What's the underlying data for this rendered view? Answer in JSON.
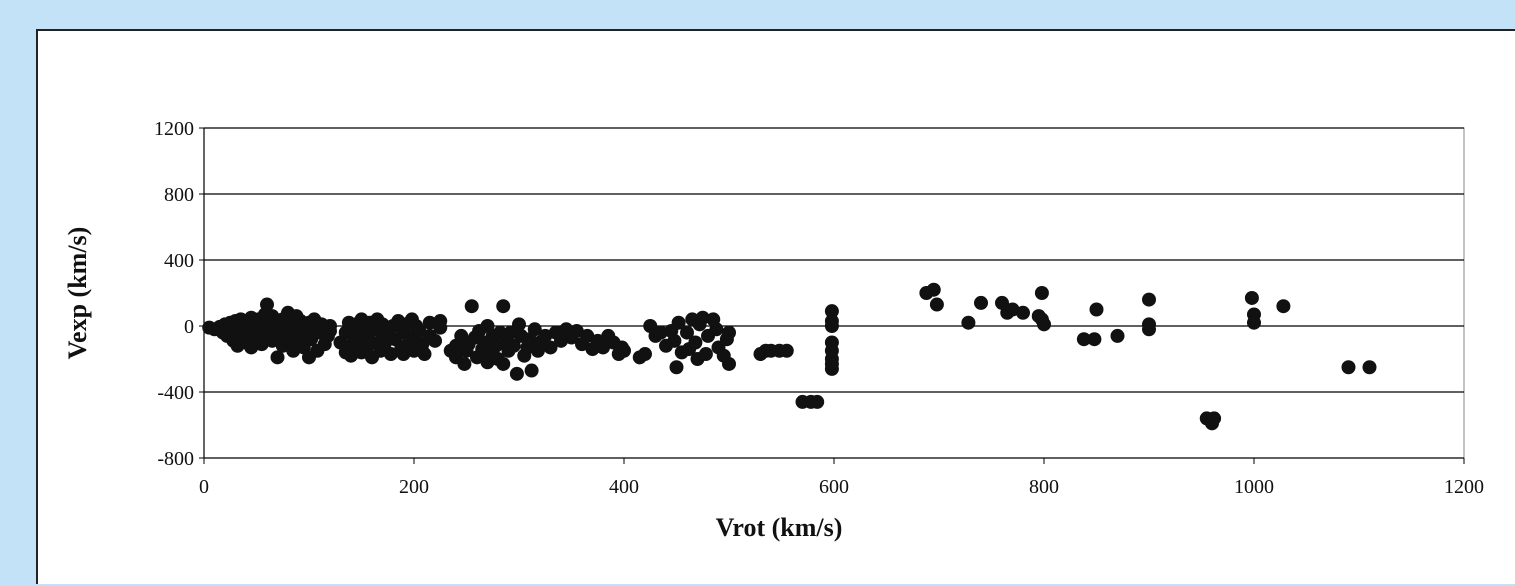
{
  "chart_data": {
    "type": "scatter",
    "title": "",
    "xlabel": "Vrot (km/s)",
    "ylabel": "Vexp (km/s)",
    "xlim": [
      0,
      1200
    ],
    "ylim": [
      -800,
      1200
    ],
    "xticks": [
      0,
      200,
      400,
      600,
      800,
      1000,
      1200
    ],
    "yticks": [
      -800,
      -400,
      0,
      400,
      800,
      1200
    ],
    "xtick_labels": [
      "0",
      "200",
      "400",
      "600",
      "800",
      "1000",
      "1200"
    ],
    "ytick_labels": [
      "-800",
      "-400",
      "0",
      "400",
      "800",
      "1200"
    ],
    "grid": "horizontal",
    "legend": "none",
    "colors": {
      "marker": "#111111",
      "grid": "#000000",
      "background": "#c3e2f7",
      "plot_bg": "#ffffff"
    },
    "series": [
      {
        "points": [
          [
            5,
            -10
          ],
          [
            10,
            -20
          ],
          [
            15,
            -5
          ],
          [
            18,
            -40
          ],
          [
            20,
            10
          ],
          [
            22,
            -60
          ],
          [
            25,
            -30
          ],
          [
            25,
            20
          ],
          [
            28,
            -90
          ],
          [
            30,
            -50
          ],
          [
            30,
            30
          ],
          [
            32,
            -120
          ],
          [
            35,
            -10
          ],
          [
            35,
            40
          ],
          [
            38,
            -70
          ],
          [
            40,
            -100
          ],
          [
            40,
            20
          ],
          [
            42,
            -30
          ],
          [
            45,
            50
          ],
          [
            45,
            -130
          ],
          [
            48,
            -60
          ],
          [
            50,
            0
          ],
          [
            50,
            -80
          ],
          [
            52,
            40
          ],
          [
            55,
            -20
          ],
          [
            55,
            -110
          ],
          [
            58,
            70
          ],
          [
            60,
            130
          ],
          [
            60,
            -50
          ],
          [
            62,
            20
          ],
          [
            65,
            -90
          ],
          [
            65,
            60
          ],
          [
            68,
            -30
          ],
          [
            70,
            -190
          ],
          [
            70,
            10
          ],
          [
            72,
            -60
          ],
          [
            75,
            40
          ],
          [
            75,
            -120
          ],
          [
            78,
            -10
          ],
          [
            80,
            -80
          ],
          [
            80,
            80
          ],
          [
            82,
            20
          ],
          [
            85,
            -150
          ],
          [
            85,
            -40
          ],
          [
            88,
            60
          ],
          [
            90,
            -100
          ],
          [
            90,
            0
          ],
          [
            92,
            30
          ],
          [
            95,
            -60
          ],
          [
            95,
            -130
          ],
          [
            98,
            -20
          ],
          [
            100,
            -190
          ],
          [
            100,
            20
          ],
          [
            102,
            -80
          ],
          [
            105,
            40
          ],
          [
            105,
            -10
          ],
          [
            108,
            -150
          ],
          [
            110,
            -40
          ],
          [
            112,
            10
          ],
          [
            115,
            -110
          ],
          [
            118,
            -60
          ],
          [
            120,
            0
          ],
          [
            120,
            -30
          ],
          [
            130,
            -100
          ],
          [
            135,
            -160
          ],
          [
            135,
            -40
          ],
          [
            138,
            20
          ],
          [
            140,
            -180
          ],
          [
            140,
            -120
          ],
          [
            142,
            -60
          ],
          [
            145,
            10
          ],
          [
            148,
            -90
          ],
          [
            150,
            40
          ],
          [
            150,
            -160
          ],
          [
            152,
            -30
          ],
          [
            155,
            -130
          ],
          [
            155,
            -70
          ],
          [
            158,
            20
          ],
          [
            160,
            -190
          ],
          [
            160,
            -100
          ],
          [
            162,
            -20
          ],
          [
            165,
            40
          ],
          [
            168,
            -150
          ],
          [
            170,
            -60
          ],
          [
            170,
            10
          ],
          [
            172,
            -110
          ],
          [
            175,
            -30
          ],
          [
            178,
            -170
          ],
          [
            180,
            0
          ],
          [
            182,
            -80
          ],
          [
            185,
            30
          ],
          [
            188,
            -130
          ],
          [
            190,
            -40
          ],
          [
            190,
            -170
          ],
          [
            192,
            10
          ],
          [
            195,
            -100
          ],
          [
            198,
            40
          ],
          [
            200,
            -150
          ],
          [
            200,
            -60
          ],
          [
            202,
            0
          ],
          [
            205,
            -30
          ],
          [
            208,
            -110
          ],
          [
            210,
            -170
          ],
          [
            215,
            -60
          ],
          [
            215,
            20
          ],
          [
            220,
            -90
          ],
          [
            225,
            -10
          ],
          [
            225,
            30
          ],
          [
            235,
            -150
          ],
          [
            240,
            -120
          ],
          [
            240,
            -190
          ],
          [
            245,
            -60
          ],
          [
            248,
            -230
          ],
          [
            250,
            -150
          ],
          [
            252,
            -110
          ],
          [
            255,
            120
          ],
          [
            258,
            -70
          ],
          [
            260,
            -190
          ],
          [
            262,
            -30
          ],
          [
            265,
            -140
          ],
          [
            268,
            -100
          ],
          [
            270,
            -220
          ],
          [
            270,
            0
          ],
          [
            272,
            -160
          ],
          [
            275,
            -60
          ],
          [
            278,
            -120
          ],
          [
            280,
            -200
          ],
          [
            282,
            -40
          ],
          [
            285,
            -230
          ],
          [
            285,
            120
          ],
          [
            288,
            -90
          ],
          [
            290,
            -150
          ],
          [
            292,
            -40
          ],
          [
            295,
            -120
          ],
          [
            298,
            -290
          ],
          [
            300,
            10
          ],
          [
            302,
            -60
          ],
          [
            305,
            -180
          ],
          [
            308,
            -130
          ],
          [
            310,
            -80
          ],
          [
            312,
            -270
          ],
          [
            315,
            -20
          ],
          [
            318,
            -150
          ],
          [
            320,
            -100
          ],
          [
            325,
            -60
          ],
          [
            330,
            -130
          ],
          [
            335,
            -40
          ],
          [
            340,
            -90
          ],
          [
            345,
            -20
          ],
          [
            350,
            -70
          ],
          [
            355,
            -30
          ],
          [
            360,
            -110
          ],
          [
            365,
            -60
          ],
          [
            370,
            -140
          ],
          [
            375,
            -90
          ],
          [
            380,
            -130
          ],
          [
            385,
            -60
          ],
          [
            390,
            -100
          ],
          [
            395,
            -170
          ],
          [
            398,
            -130
          ],
          [
            400,
            -150
          ],
          [
            415,
            -190
          ],
          [
            420,
            -170
          ],
          [
            425,
            0
          ],
          [
            430,
            -60
          ],
          [
            435,
            -40
          ],
          [
            440,
            -120
          ],
          [
            445,
            -30
          ],
          [
            448,
            -90
          ],
          [
            450,
            -250
          ],
          [
            452,
            20
          ],
          [
            455,
            -160
          ],
          [
            460,
            -40
          ],
          [
            462,
            -140
          ],
          [
            465,
            40
          ],
          [
            468,
            -100
          ],
          [
            470,
            -200
          ],
          [
            472,
            10
          ],
          [
            475,
            50
          ],
          [
            478,
            -170
          ],
          [
            480,
            -60
          ],
          [
            485,
            40
          ],
          [
            488,
            -20
          ],
          [
            490,
            -130
          ],
          [
            495,
            -180
          ],
          [
            498,
            -80
          ],
          [
            500,
            -230
          ],
          [
            500,
            -40
          ],
          [
            530,
            -170
          ],
          [
            535,
            -150
          ],
          [
            540,
            -150
          ],
          [
            548,
            -150
          ],
          [
            555,
            -150
          ],
          [
            570,
            -460
          ],
          [
            578,
            -460
          ],
          [
            584,
            -460
          ],
          [
            598,
            90
          ],
          [
            598,
            30
          ],
          [
            598,
            0
          ],
          [
            598,
            -100
          ],
          [
            598,
            -150
          ],
          [
            598,
            -200
          ],
          [
            598,
            -230
          ],
          [
            598,
            -260
          ],
          [
            688,
            200
          ],
          [
            695,
            220
          ],
          [
            698,
            130
          ],
          [
            728,
            20
          ],
          [
            740,
            140
          ],
          [
            760,
            140
          ],
          [
            765,
            80
          ],
          [
            770,
            100
          ],
          [
            780,
            80
          ],
          [
            795,
            60
          ],
          [
            798,
            200
          ],
          [
            798,
            40
          ],
          [
            800,
            10
          ],
          [
            838,
            -80
          ],
          [
            848,
            -80
          ],
          [
            850,
            100
          ],
          [
            870,
            -60
          ],
          [
            900,
            160
          ],
          [
            900,
            10
          ],
          [
            900,
            -20
          ],
          [
            955,
            -560
          ],
          [
            960,
            -590
          ],
          [
            962,
            -560
          ],
          [
            998,
            170
          ],
          [
            1000,
            70
          ],
          [
            1000,
            20
          ],
          [
            1028,
            120
          ],
          [
            1090,
            -250
          ],
          [
            1110,
            -250
          ]
        ]
      }
    ]
  }
}
